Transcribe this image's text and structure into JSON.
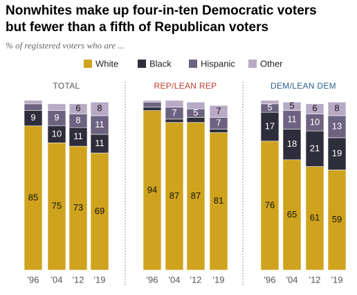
{
  "title": [
    "Nonwhites make up four-in-ten Democratic voters",
    "but fewer than a fifth of Republican voters"
  ],
  "subtitle": "% of registered voters who are ...",
  "chart_data": [
    {
      "type": "stacked_bar",
      "title": "TOTAL",
      "title_color": "#555555",
      "categories": [
        "'96",
        "'04",
        "'12",
        "'19"
      ],
      "ylim": [
        0,
        100
      ],
      "series": [
        {
          "name": "White",
          "color": "#cfa31d",
          "values": [
            85,
            75,
            73,
            69
          ]
        },
        {
          "name": "Black",
          "color": "#2e2d3b",
          "values": [
            9,
            10,
            11,
            11
          ]
        },
        {
          "name": "Hispanic",
          "color": "#6d6381",
          "values": [
            4,
            9,
            8,
            11
          ]
        },
        {
          "name": "Other",
          "color": "#b8aac5",
          "values": [
            2,
            4,
            6,
            8
          ]
        }
      ]
    },
    {
      "type": "stacked_bar",
      "title": "REP/LEAN REP",
      "title_color": "#c0392b",
      "categories": [
        "'96",
        "'04",
        "'12",
        "'19"
      ],
      "ylim": [
        0,
        100
      ],
      "series": [
        {
          "name": "White",
          "color": "#cfa31d",
          "values": [
            94,
            87,
            87,
            81
          ]
        },
        {
          "name": "Black",
          "color": "#2e2d3b",
          "values": [
            2,
            2,
            3,
            2
          ]
        },
        {
          "name": "Hispanic",
          "color": "#6d6381",
          "values": [
            3,
            7,
            5,
            7
          ]
        },
        {
          "name": "Other",
          "color": "#b8aac5",
          "values": [
            1,
            4,
            4,
            7
          ]
        }
      ]
    },
    {
      "type": "stacked_bar",
      "title": "DEM/LEAN DEM",
      "title_color": "#2b5f8c",
      "categories": [
        "'96",
        "'04",
        "'12",
        "'19"
      ],
      "ylim": [
        0,
        100
      ],
      "series": [
        {
          "name": "White",
          "color": "#cfa31d",
          "values": [
            76,
            65,
            61,
            59
          ]
        },
        {
          "name": "Black",
          "color": "#2e2d3b",
          "values": [
            17,
            18,
            21,
            19
          ]
        },
        {
          "name": "Hispanic",
          "color": "#6d6381",
          "values": [
            5,
            11,
            10,
            13
          ]
        },
        {
          "name": "Other",
          "color": "#b8aac5",
          "values": [
            2,
            5,
            6,
            8
          ]
        }
      ]
    }
  ]
}
